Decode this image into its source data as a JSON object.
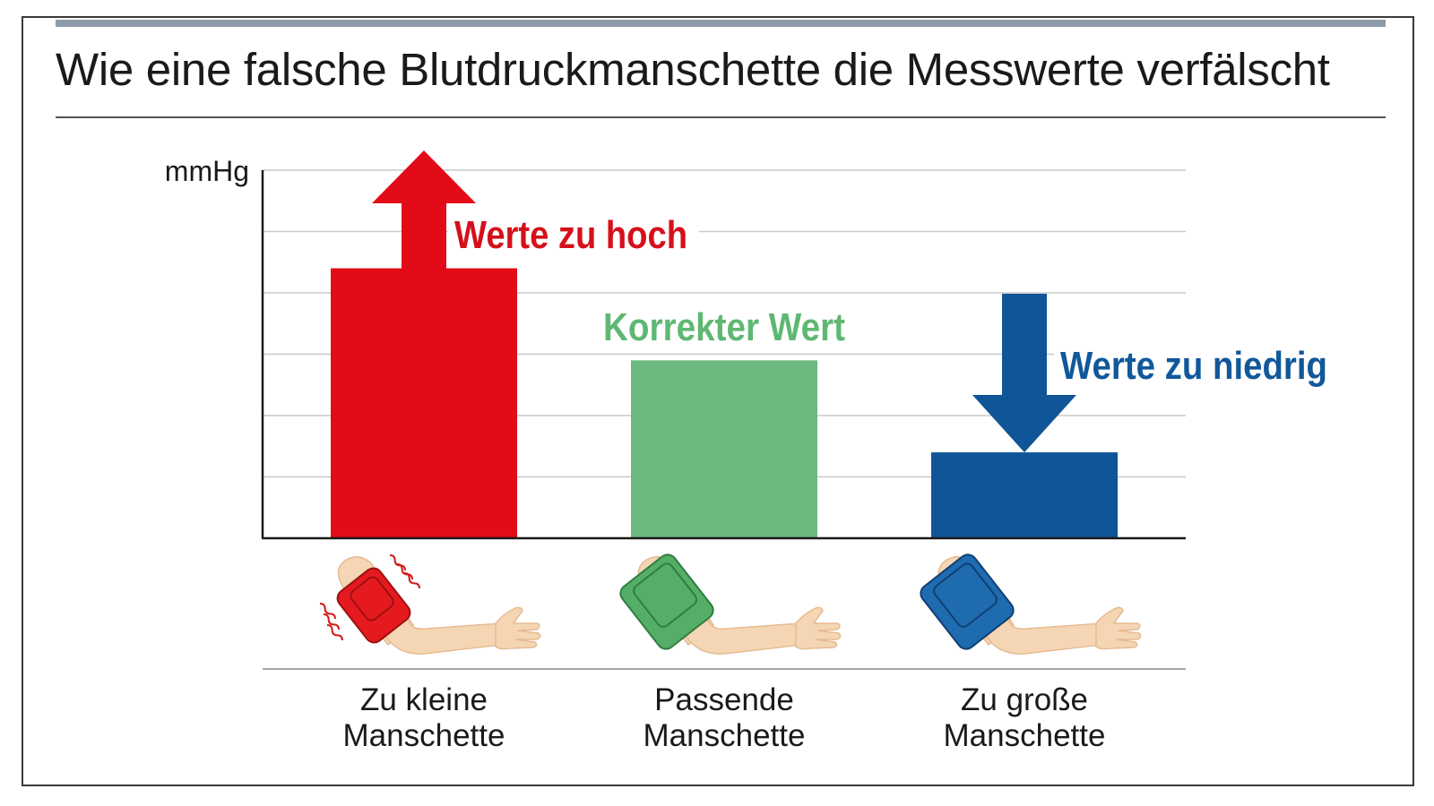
{
  "title": "Wie eine falsche Blutdruckmanschette die Messwerte verfälscht",
  "chart_data": {
    "type": "bar",
    "ylabel": "mmHg",
    "categories": [
      [
        "Zu kleine",
        "Manschette"
      ],
      [
        "Passende",
        "Manschette"
      ],
      [
        "Zu große",
        "Manschette"
      ]
    ],
    "values": [
      4.4,
      2.9,
      1.4
    ],
    "ylim": [
      0,
      6
    ],
    "grid": true,
    "colors": [
      "#e20b17",
      "#6cb97f",
      "#0f5597"
    ],
    "annotations": [
      {
        "text": "Werte zu hoch",
        "color": "#d5101a",
        "arrow": "up"
      },
      {
        "text": "Korrekter Wert",
        "color": "#5fb872",
        "arrow": "none"
      },
      {
        "text": "Werte zu niedrig",
        "color": "#10589a",
        "arrow": "down"
      }
    ],
    "icons": [
      "arm-tight-red-cuff-icon",
      "arm-fitting-green-cuff-icon",
      "arm-loose-blue-cuff-icon"
    ]
  }
}
